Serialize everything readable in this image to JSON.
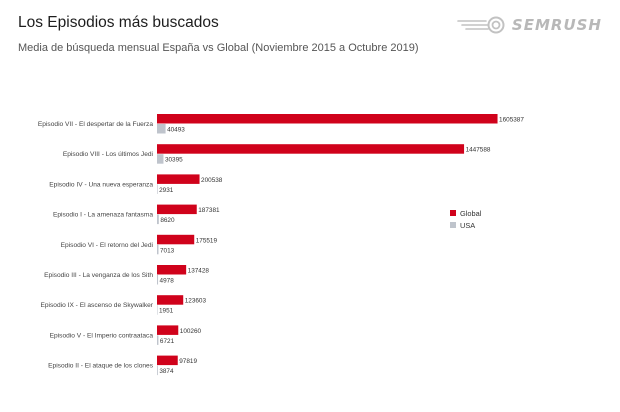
{
  "header": {
    "title": "Los Episodios más buscados",
    "subtitle": "Media de búsqueda mensual España vs Global (Noviembre 2015 a Octubre 2019)"
  },
  "logo": {
    "text": "SEMRUSH",
    "icon": "semrush-fireball-icon",
    "color": "#b8b8b8"
  },
  "chart_data": {
    "type": "bar",
    "orientation": "horizontal",
    "title": "Los Episodios más buscados",
    "subtitle": "Media de búsqueda mensual España vs Global (Noviembre 2015 a Octubre 2019)",
    "categories": [
      "Episodio VII - El despertar de la Fuerza",
      "Episodio VIII - Los últimos Jedi",
      "Episodio IV - Una nueva esperanza",
      "Episodio I - La amenaza fantasma",
      "Episodio VI - El retorno del Jedi",
      "Episodio III - La venganza de los Sith",
      "Episodio IX - El ascenso de Skywalker",
      "Episodio V - El Imperio contraataca",
      "Episodio II - El ataque de los clones"
    ],
    "series": [
      {
        "name": "Global",
        "color": "#d0021b",
        "values": [
          1605387,
          1447588,
          200538,
          187381,
          175519,
          137428,
          123603,
          100260,
          97819
        ]
      },
      {
        "name": "USA",
        "color": "#bfc4cc",
        "values": [
          40493,
          30395,
          2931,
          8620,
          7013,
          4978,
          1951,
          6721,
          3874
        ]
      }
    ],
    "legend_position": "right",
    "grid": false,
    "xlim": [
      0,
      1650000
    ]
  }
}
